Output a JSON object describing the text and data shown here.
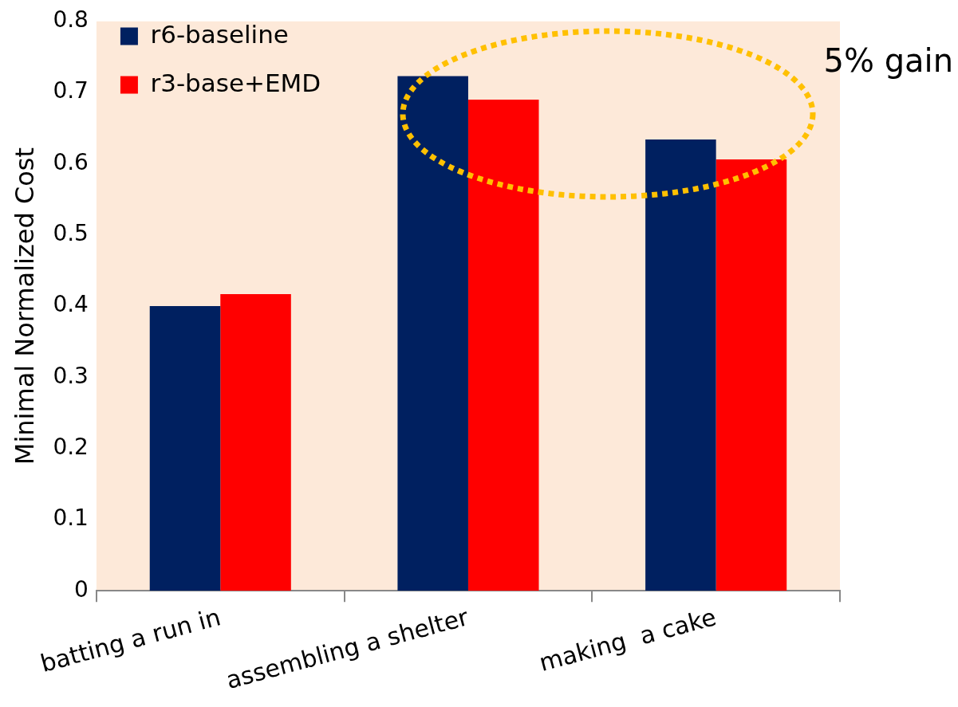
{
  "chart_data": {
    "type": "bar",
    "ylabel": "Minimal Normalized Cost",
    "categories": [
      "batting a run in",
      "assembling a shelter",
      "making  a cake"
    ],
    "series": [
      {
        "name": "r6-baseline",
        "color": "#002060",
        "values": [
          0.4,
          0.723,
          0.634
        ]
      },
      {
        "name": "r3-base+EMD",
        "color": "#ff0000",
        "values": [
          0.417,
          0.69,
          0.606
        ]
      }
    ],
    "ylim": [
      0,
      0.8
    ],
    "yticks": [
      0,
      0.1,
      0.2,
      0.3,
      0.4,
      0.5,
      0.6,
      0.7,
      0.8
    ],
    "grid": false,
    "legend": "top left",
    "annotations": [
      "5% gain"
    ]
  }
}
